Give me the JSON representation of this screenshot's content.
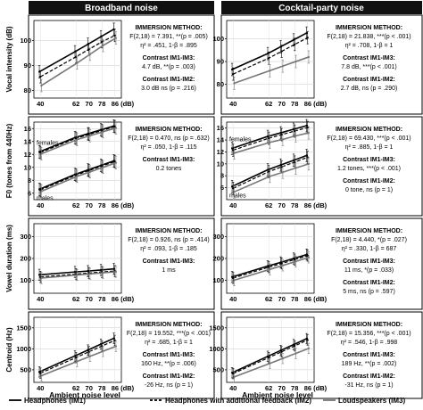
{
  "headers": [
    "Broadband noise",
    "Cocktail-party noise"
  ],
  "x_axis_label": "Ambient noise level",
  "legend": [
    {
      "label": "Headphones (IM1)",
      "style": "solid"
    },
    {
      "label": "Headphones with additional feedback (IM2)",
      "style": "dashed"
    },
    {
      "label": "Loudspeakers (IM3)",
      "style": "gray"
    }
  ],
  "chart_data": [
    {
      "type": "line",
      "title": "Broadband noise",
      "ylabel": "Vocal intensity (dB)",
      "xlabel": "",
      "x": [
        40,
        62,
        70,
        78,
        86
      ],
      "xticks": [
        "40",
        "62",
        "70",
        "78",
        "86 (dB)"
      ],
      "yticks": [
        80,
        90,
        100
      ],
      "ylim": [
        77,
        108
      ],
      "series": [
        {
          "name": "Headphones (IM1)",
          "values": [
            87.5,
            95.5,
            98.5,
            101.5,
            104.5
          ]
        },
        {
          "name": "Headphones with additional feedback (IM2)",
          "values": [
            85.5,
            93.5,
            96.5,
            99.5,
            102
          ]
        },
        {
          "name": "Loudspeakers (IM3)",
          "values": [
            82,
            91,
            94.5,
            98,
            101
          ]
        }
      ],
      "group_labels": [],
      "annotations": [
        {
          "text": "IMMERSION METHOD:",
          "bold": true
        },
        {
          "text": "F(2,18) = 7.391, **(p = .005)",
          "bold": false
        },
        {
          "text": "η² = .451, 1-β = .895",
          "bold": false
        },
        {
          "text": "Contrast IM1-IM3:",
          "bold": true
        },
        {
          "text": "4.7 dB, **(p = .003)",
          "bold": false
        },
        {
          "text": "Contrast IM1-IM2:",
          "bold": true
        },
        {
          "text": "3.0 dB ns (p = .216)",
          "bold": false
        }
      ]
    },
    {
      "type": "line",
      "title": "Cocktail-party noise",
      "ylabel": "",
      "xlabel": "",
      "x": [
        40,
        62,
        70,
        78,
        86
      ],
      "xticks": [
        "40",
        "62",
        "70",
        "78",
        "86 (dB)"
      ],
      "yticks": [
        80,
        90,
        100
      ],
      "ylim": [
        74,
        108
      ],
      "series": [
        {
          "name": "Headphones (IM1)",
          "values": [
            86.5,
            93.5,
            96.5,
            99.5,
            102.5
          ]
        },
        {
          "name": "Headphones with additional feedback (IM2)",
          "values": [
            84.5,
            91.5,
            94.5,
            97.5,
            100.5
          ]
        },
        {
          "name": "Loudspeakers (IM3)",
          "values": [
            80.5,
            86,
            88,
            90,
            92
          ]
        }
      ],
      "group_labels": [],
      "annotations": [
        {
          "text": "IMMERSION METHOD:",
          "bold": true
        },
        {
          "text": "F(2,18) = 21.838, ***(p < .001)",
          "bold": false
        },
        {
          "text": "η² = .708, 1-β = 1",
          "bold": false
        },
        {
          "text": "Contrast IM1-IM3:",
          "bold": true
        },
        {
          "text": "7.8 dB, ***(p < .001)",
          "bold": false
        },
        {
          "text": "Contrast IM1-IM2:",
          "bold": true
        },
        {
          "text": "2.7 dB, ns (p = .290)",
          "bold": false
        }
      ]
    },
    {
      "type": "line",
      "title": "",
      "ylabel": "F0 (tones from 440Hz)",
      "xlabel": "",
      "x": [
        40,
        62,
        70,
        78,
        86
      ],
      "xticks": [
        "40",
        "62",
        "70",
        "78",
        "86 (dB)"
      ],
      "yticks": [
        6,
        8,
        10,
        12,
        14,
        16
      ],
      "ylim": [
        5,
        17
      ],
      "series": [
        {
          "name": "Headphones (IM1) females",
          "values": [
            12.4,
            14.6,
            15.2,
            15.8,
            16.4
          ]
        },
        {
          "name": "Headphones with additional feedback (IM2) females",
          "values": [
            12.3,
            14.5,
            15.1,
            15.7,
            16.3
          ]
        },
        {
          "name": "Loudspeakers (IM3) females",
          "values": [
            12.1,
            14.3,
            14.9,
            15.5,
            16.1
          ]
        },
        {
          "name": "Headphones (IM1) males",
          "values": [
            6.6,
            8.9,
            9.6,
            10.3,
            11
          ]
        },
        {
          "name": "Headphones with additional feedback (IM2) males",
          "values": [
            6.5,
            8.8,
            9.5,
            10.2,
            10.9
          ]
        },
        {
          "name": "Loudspeakers (IM3) males",
          "values": [
            6.3,
            8.6,
            9.3,
            10,
            10.7
          ]
        }
      ],
      "group_labels": [
        "females",
        "males"
      ],
      "annotations": [
        {
          "text": "IMMERSION METHOD:",
          "bold": true
        },
        {
          "text": "F(2,18) = 0.470, ns (p = .632)",
          "bold": false
        },
        {
          "text": "η² = .050, 1-β = .115",
          "bold": false
        },
        {
          "text": "Contrast IM1-IM3:",
          "bold": true
        },
        {
          "text": "0.2 tones",
          "bold": false
        }
      ]
    },
    {
      "type": "line",
      "title": "",
      "ylabel": "",
      "xlabel": "",
      "x": [
        40,
        62,
        70,
        78,
        86
      ],
      "xticks": [
        "40",
        "62",
        "70",
        "78",
        "86 (dB)"
      ],
      "yticks": [
        6,
        8,
        10,
        12,
        14,
        16
      ],
      "ylim": [
        4,
        17
      ],
      "series": [
        {
          "name": "Headphones (IM1) females",
          "values": [
            12.6,
            14.6,
            15.2,
            15.8,
            16.4
          ]
        },
        {
          "name": "Headphones with additional feedback (IM2) females",
          "values": [
            12.3,
            14.3,
            14.9,
            15.5,
            16.1
          ]
        },
        {
          "name": "Loudspeakers (IM3) females",
          "values": [
            11.8,
            13.6,
            14.1,
            14.7,
            15.2
          ]
        },
        {
          "name": "Headphones (IM1) males",
          "values": [
            6.2,
            9,
            9.8,
            10.6,
            11.4
          ]
        },
        {
          "name": "Headphones with additional feedback (IM2) males",
          "values": [
            5.9,
            8.7,
            9.5,
            10.3,
            11.1
          ]
        },
        {
          "name": "Loudspeakers (IM3) males",
          "values": [
            5.3,
            7.9,
            8.6,
            9.3,
            10
          ]
        }
      ],
      "group_labels": [
        "females",
        "males"
      ],
      "annotations": [
        {
          "text": "IMMERSION METHOD:",
          "bold": true
        },
        {
          "text": "F(2,18) = 69.430, ***(p < .001)",
          "bold": false
        },
        {
          "text": "η² = .885, 1-β = 1",
          "bold": false
        },
        {
          "text": "Contrast IM1-IM3:",
          "bold": true
        },
        {
          "text": "1.2 tones, ***(p < .001)",
          "bold": false
        },
        {
          "text": "Contrast IM1-IM2:",
          "bold": true
        },
        {
          "text": "0 tone, ns (p = 1)",
          "bold": false
        }
      ]
    },
    {
      "type": "line",
      "title": "",
      "ylabel": "Vowel duration (ms)",
      "xlabel": "",
      "x": [
        40,
        62,
        70,
        78,
        86
      ],
      "xticks": [
        "40",
        "62",
        "70",
        "78",
        "86 (dB)"
      ],
      "yticks": [
        100,
        200,
        300
      ],
      "ylim": [
        40,
        360
      ],
      "series": [
        {
          "name": "Headphones (IM1)",
          "values": [
            125,
            138,
            142,
            147,
            152
          ]
        },
        {
          "name": "Headphones with additional feedback (IM2)",
          "values": [
            115,
            128,
            133,
            138,
            142
          ]
        },
        {
          "name": "Loudspeakers (IM3)",
          "values": [
            110,
            124,
            129,
            134,
            139
          ]
        }
      ],
      "group_labels": [],
      "annotations": [
        {
          "text": "IMMERSION METHOD:",
          "bold": true
        },
        {
          "text": "F(2,18) = 0.926, ns (p = .414)",
          "bold": false
        },
        {
          "text": "η² = .093, 1-β = .185",
          "bold": false
        },
        {
          "text": "Contrast IM1-IM3:",
          "bold": true
        },
        {
          "text": "1 ms",
          "bold": false
        }
      ]
    },
    {
      "type": "line",
      "title": "",
      "ylabel": "",
      "xlabel": "",
      "x": [
        40,
        62,
        70,
        78,
        86
      ],
      "xticks": [
        "40",
        "62",
        "70",
        "78",
        "86 (dB)"
      ],
      "yticks": [
        100,
        200,
        300
      ],
      "ylim": [
        40,
        360
      ],
      "series": [
        {
          "name": "Headphones (IM1)",
          "values": [
            115,
            165,
            182,
            200,
            218
          ]
        },
        {
          "name": "Headphones with additional feedback (IM2)",
          "values": [
            110,
            160,
            177,
            195,
            213
          ]
        },
        {
          "name": "Loudspeakers (IM3)",
          "values": [
            100,
            150,
            168,
            186,
            205
          ]
        }
      ],
      "group_labels": [],
      "annotations": [
        {
          "text": "IMMERSION METHOD:",
          "bold": true
        },
        {
          "text": "F(2,18) = 4.440, *(p = .027)",
          "bold": false
        },
        {
          "text": "η² = .330, 1-β = 687",
          "bold": false
        },
        {
          "text": "Contrast IM1-IM3:",
          "bold": true
        },
        {
          "text": "11 ms, *(p = .033)",
          "bold": false
        },
        {
          "text": "Contrast IM1-IM2:",
          "bold": true
        },
        {
          "text": "5 ms, ns (p = .597)",
          "bold": false
        }
      ]
    },
    {
      "type": "line",
      "title": "",
      "ylabel": "Centroid (Hz)",
      "xlabel": "Ambient noise level",
      "x": [
        40,
        62,
        70,
        78,
        86
      ],
      "xticks": [
        "40",
        "62",
        "70",
        "78",
        "86 (dB)"
      ],
      "yticks": [
        500,
        1000,
        1500
      ],
      "ylim": [
        200,
        1750
      ],
      "series": [
        {
          "name": "Headphones (IM1)",
          "values": [
            450,
            830,
            970,
            1110,
            1250
          ]
        },
        {
          "name": "Headphones with additional feedback (IM2)",
          "values": [
            420,
            790,
            930,
            1065,
            1200
          ]
        },
        {
          "name": "Loudspeakers (IM3)",
          "values": [
            360,
            700,
            820,
            940,
            1060
          ]
        }
      ],
      "group_labels": [],
      "annotations": [
        {
          "text": "IMMERSION METHOD:",
          "bold": true
        },
        {
          "text": "F(2,18) = 19.552, ***(p < .001)",
          "bold": false
        },
        {
          "text": "η² = .685, 1-β = 1",
          "bold": false
        },
        {
          "text": "Contrast IM1-IM3:",
          "bold": true
        },
        {
          "text": "160 Hz, **(p = .006)",
          "bold": false
        },
        {
          "text": "Contrast IM1-IM2:",
          "bold": true
        },
        {
          "text": "-26 Hz, ns (p = 1)",
          "bold": false
        }
      ]
    },
    {
      "type": "line",
      "title": "",
      "ylabel": "",
      "xlabel": "Ambient noise level",
      "x": [
        40,
        62,
        70,
        78,
        86
      ],
      "xticks": [
        "40",
        "62",
        "70",
        "78",
        "86 (dB)"
      ],
      "yticks": [
        500,
        1000,
        1500
      ],
      "ylim": [
        200,
        1750
      ],
      "series": [
        {
          "name": "Headphones (IM1)",
          "values": [
            430,
            820,
            960,
            1100,
            1240
          ]
        },
        {
          "name": "Headphones with additional feedback (IM2)",
          "values": [
            410,
            790,
            930,
            1070,
            1210
          ]
        },
        {
          "name": "Loudspeakers (IM3)",
          "values": [
            330,
            650,
            770,
            890,
            1010
          ]
        }
      ],
      "group_labels": [],
      "annotations": [
        {
          "text": "IMMERSION METHOD:",
          "bold": true
        },
        {
          "text": "F(2,18) = 15.356, ***(p < .001)",
          "bold": false
        },
        {
          "text": "η² = .546, 1-β = .998",
          "bold": false
        },
        {
          "text": "Contrast IM1-IM3:",
          "bold": true
        },
        {
          "text": "189 Hz, **(p = .002)",
          "bold": false
        },
        {
          "text": "Contrast IM1-IM2:",
          "bold": true
        },
        {
          "text": "-31 Hz, ns (p = 1)",
          "bold": false
        }
      ]
    }
  ]
}
